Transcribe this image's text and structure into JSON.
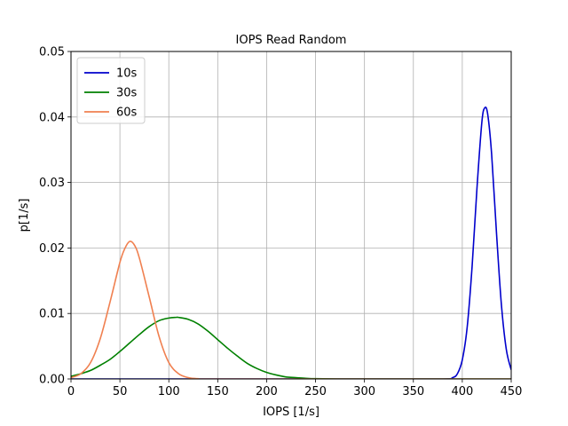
{
  "chart_data": {
    "type": "line",
    "title": "IOPS Read Random",
    "xlabel": "IOPS [1/s]",
    "ylabel": "p[1/s]",
    "xlim": [
      0,
      450
    ],
    "ylim": [
      0,
      0.05
    ],
    "x_ticks": [
      "0",
      "50",
      "100",
      "150",
      "200",
      "250",
      "300",
      "350",
      "400",
      "450"
    ],
    "y_ticks": [
      "0.00",
      "0.01",
      "0.02",
      "0.03",
      "0.04",
      "0.05"
    ],
    "grid": true,
    "legend_position": "top-left",
    "series": [
      {
        "name": "10s",
        "color": "#0000cc",
        "x": [
          0,
          100,
          200,
          300,
          380,
          390,
          395,
          400,
          405,
          410,
          415,
          420,
          423,
          426,
          430,
          435,
          440,
          445,
          450
        ],
        "y": [
          0,
          0,
          0,
          0,
          0,
          0.0002,
          0.0008,
          0.0029,
          0.0079,
          0.0171,
          0.0291,
          0.0392,
          0.0414,
          0.0404,
          0.0343,
          0.0222,
          0.0113,
          0.0045,
          0.0014
        ]
      },
      {
        "name": "30s",
        "color": "#008000",
        "x": [
          0,
          10,
          20,
          30,
          40,
          50,
          60,
          70,
          80,
          90,
          100,
          107,
          110,
          120,
          130,
          140,
          150,
          160,
          170,
          180,
          190,
          200,
          210,
          220,
          230,
          240,
          250,
          275,
          300,
          450
        ],
        "y": [
          0.0004,
          0.0008,
          0.0013,
          0.0021,
          0.003,
          0.0042,
          0.0055,
          0.0068,
          0.008,
          0.0089,
          0.0093,
          0.0094,
          0.0094,
          0.0091,
          0.0084,
          0.0073,
          0.006,
          0.0047,
          0.0035,
          0.0024,
          0.0016,
          0.001,
          0.0006,
          0.0003,
          0.0002,
          0.0001,
          4e-05,
          0,
          0,
          0
        ]
      },
      {
        "name": "60s",
        "color": "#f08050",
        "x": [
          0,
          10,
          20,
          30,
          40,
          50,
          55,
          60,
          65,
          70,
          80,
          90,
          100,
          110,
          120,
          130,
          150,
          450
        ],
        "y": [
          0.0002,
          0.0008,
          0.0025,
          0.0062,
          0.0118,
          0.0178,
          0.0199,
          0.021,
          0.0204,
          0.0184,
          0.0125,
          0.0065,
          0.0025,
          0.0008,
          0.0002,
          4e-05,
          0,
          0
        ]
      }
    ]
  }
}
